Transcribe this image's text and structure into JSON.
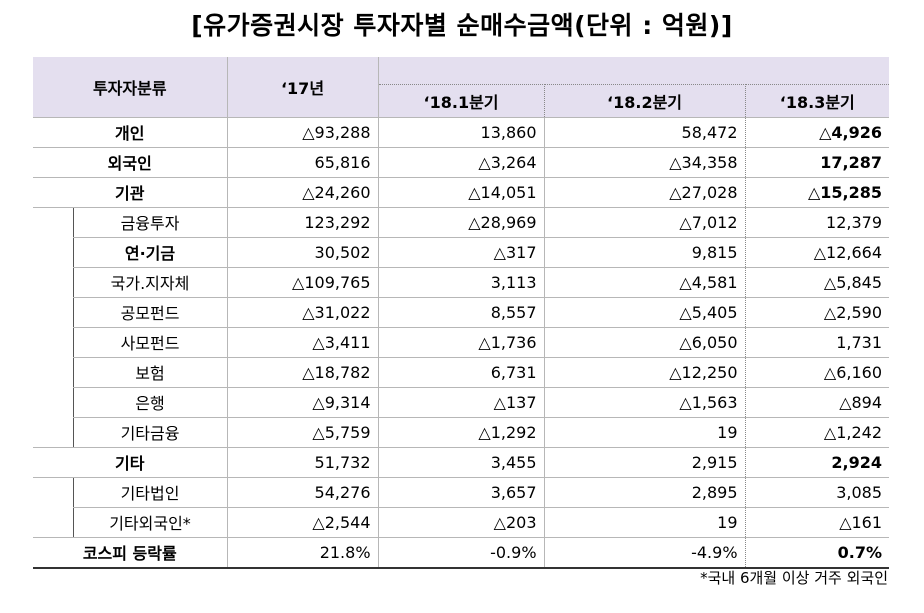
{
  "title": "[유가증권시장 투자자별 순매수금액(단위 : 억원)]",
  "header": {
    "category": "투자자분류",
    "y17": "‘17년",
    "q1": "‘18.1분기",
    "q2": "‘18.2분기",
    "q3": "‘18.3분기"
  },
  "rows": [
    {
      "label": "개인",
      "level": "main",
      "values": [
        "△93,288",
        "13,860",
        "58,472",
        "△4,926"
      ]
    },
    {
      "label": "외국인",
      "level": "main",
      "values": [
        "65,816",
        "△3,264",
        "△34,358",
        "17,287"
      ]
    },
    {
      "label": "기관",
      "level": "main",
      "values": [
        "△24,260",
        "△14,051",
        "△27,028",
        "△15,285"
      ]
    },
    {
      "label": "금융투자",
      "level": "sub",
      "values": [
        "123,292",
        "△28,969",
        "△7,012",
        "12,379"
      ]
    },
    {
      "label": "연·기금",
      "level": "sub-bold",
      "values": [
        "30,502",
        "△317",
        "9,815",
        "△12,664"
      ]
    },
    {
      "label": "국가.지자체",
      "level": "sub",
      "values": [
        "△109,765",
        "3,113",
        "△4,581",
        "△5,845"
      ]
    },
    {
      "label": "공모펀드",
      "level": "sub",
      "values": [
        "△31,022",
        "8,557",
        "△5,405",
        "△2,590"
      ]
    },
    {
      "label": "사모펀드",
      "level": "sub",
      "values": [
        "△3,411",
        "△1,736",
        "△6,050",
        "1,731"
      ]
    },
    {
      "label": "보험",
      "level": "sub",
      "values": [
        "△18,782",
        "6,731",
        "△12,250",
        "△6,160"
      ]
    },
    {
      "label": "은행",
      "level": "sub",
      "values": [
        "△9,314",
        "△137",
        "△1,563",
        "△894"
      ]
    },
    {
      "label": "기타금융",
      "level": "sub",
      "values": [
        "△5,759",
        "△1,292",
        "19",
        "△1,242"
      ]
    },
    {
      "label": "기타",
      "level": "main",
      "values": [
        "51,732",
        "3,455",
        "2,915",
        "2,924"
      ]
    },
    {
      "label": "기타법인",
      "level": "sub",
      "values": [
        "54,276",
        "3,657",
        "2,895",
        "3,085"
      ]
    },
    {
      "label": "기타외국인*",
      "level": "sub",
      "values": [
        "△2,544",
        "△203",
        "19",
        "△161"
      ]
    },
    {
      "label": "코스피 등락률",
      "level": "main",
      "values": [
        "21.8%",
        "-0.9%",
        "-4.9%",
        "0.7%"
      ]
    }
  ],
  "footnote": "*국내 6개월 이상 거주 외국인"
}
